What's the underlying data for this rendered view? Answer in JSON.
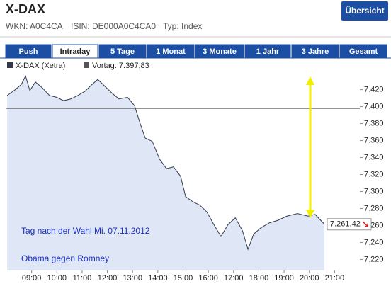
{
  "header": {
    "title": "X-DAX",
    "button": "Übersicht"
  },
  "info": [
    "WKN: A0C4CA",
    "ISIN: DE000A0C4CA0",
    "Typ: Index"
  ],
  "tabs": [
    "Push",
    "Intraday",
    "5 Tage",
    "1 Monat",
    "3 Monate",
    "1 Jahr",
    "3 Jahre",
    "Gesamt"
  ],
  "selected_tab": "Intraday",
  "chart_data": {
    "type": "line",
    "x": [
      8.03,
      8.31,
      8.59,
      8.76,
      8.93,
      9.15,
      9.43,
      9.71,
      9.99,
      10.27,
      10.55,
      10.83,
      11.11,
      11.39,
      11.62,
      11.9,
      12.18,
      12.46,
      12.8,
      13.08,
      13.3,
      13.5,
      13.78,
      14.07,
      14.34,
      14.62,
      14.9,
      15.1,
      15.38,
      15.66,
      15.94,
      16.22,
      16.5,
      16.78,
      17.07,
      17.35,
      17.57,
      17.8,
      18.07,
      18.41,
      18.75,
      19.11,
      19.53,
      19.95,
      20.23,
      20.6
    ],
    "series": [
      {
        "name": "X-DAX (Xetra)",
        "color": "#333a4a",
        "values": [
          7413,
          7419,
          7426,
          7436,
          7419,
          7429,
          7422,
          7413,
          7411,
          7407,
          7409,
          7413,
          7418,
          7426,
          7432,
          7424,
          7416,
          7409,
          7411,
          7401,
          7380,
          7363,
          7359,
          7338,
          7327,
          7329,
          7318,
          7294,
          7288,
          7284,
          7276,
          7261,
          7247,
          7261,
          7269,
          7254,
          7232,
          7250,
          7257,
          7263,
          7266,
          7271,
          7274,
          7271,
          7273,
          7261.42
        ]
      }
    ],
    "reference": {
      "label": "Vortag: 7.397,83",
      "value": 7397.83,
      "color": "#555555"
    },
    "last_value": {
      "value": 7261.42,
      "label": "7.261,42"
    },
    "annotations": [
      "Tag nach der Wahl Mi. 07.11.2012",
      "Obama gegen Romney"
    ],
    "xlim": [
      8,
      22
    ],
    "xticks": [
      {
        "value": 9,
        "label": "09:00"
      },
      {
        "value": 10,
        "label": "10:00"
      },
      {
        "value": 11,
        "label": "11:00"
      },
      {
        "value": 12,
        "label": "12:00"
      },
      {
        "value": 13,
        "label": "13:00"
      },
      {
        "value": 14,
        "label": "14:00"
      },
      {
        "value": 15,
        "label": "15:00"
      },
      {
        "value": 16,
        "label": "16:00"
      },
      {
        "value": 17,
        "label": "17:00"
      },
      {
        "value": 18,
        "label": "18:00"
      },
      {
        "value": 19,
        "label": "19:00"
      },
      {
        "value": 20,
        "label": "20:00"
      },
      {
        "value": 21,
        "label": "21:00"
      }
    ],
    "ylim": [
      7207,
      7438
    ],
    "yticks": [
      {
        "value": 7220,
        "label": "7.220"
      },
      {
        "value": 7240,
        "label": "7.240"
      },
      {
        "value": 7260,
        "label": "7.260"
      },
      {
        "value": 7280,
        "label": "7.280"
      },
      {
        "value": 7300,
        "label": "7.300"
      },
      {
        "value": 7320,
        "label": "7.320"
      },
      {
        "value": 7340,
        "label": "7.340"
      },
      {
        "value": 7360,
        "label": "7.360"
      },
      {
        "value": 7380,
        "label": "7.380"
      },
      {
        "value": 7400,
        "label": "7.400"
      },
      {
        "value": 7420,
        "label": "7.420"
      }
    ],
    "fill_color": "#dfe7f6",
    "annotation_color": "#1a2fc8"
  }
}
